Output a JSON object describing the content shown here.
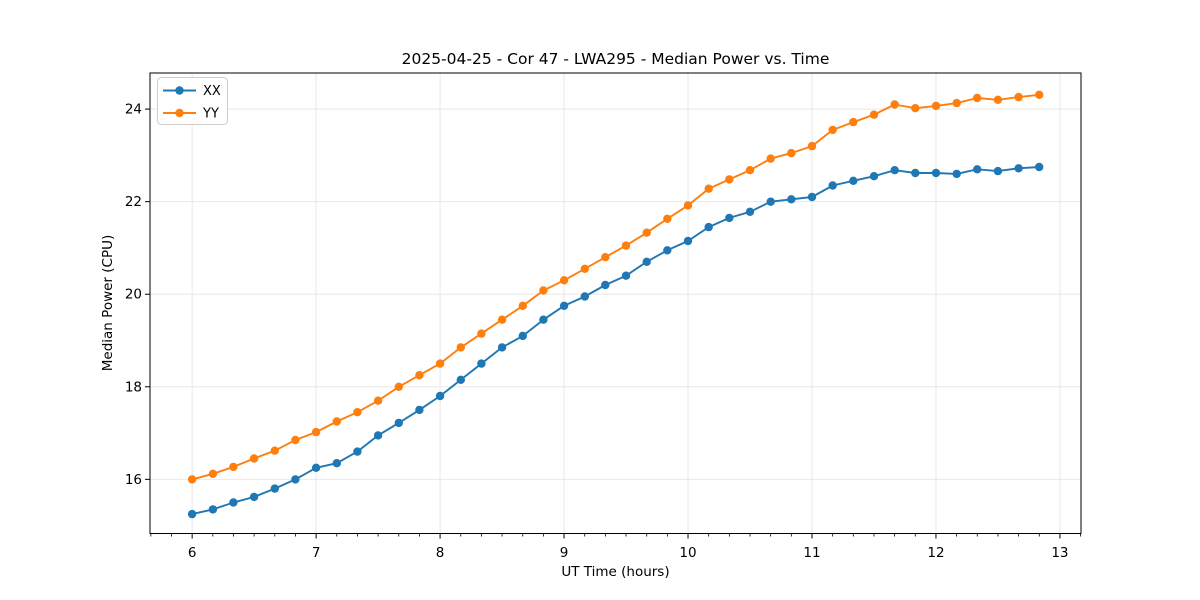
{
  "figure": {
    "background": "#ffffff",
    "frame_color": "#000000",
    "grid_color": "#e5e5e5",
    "tick_color": "#000000"
  },
  "chart_data": {
    "type": "line",
    "title": "2025-04-25 - Cor 47 - LWA295 - Median Power vs. Time",
    "xlabel": "UT Time (hours)",
    "ylabel": "Median Power (CPU)",
    "xlim": [
      5.66,
      13.17
    ],
    "ylim": [
      14.83,
      24.78
    ],
    "x_major_ticks": [
      6,
      7,
      8,
      9,
      10,
      11,
      12,
      13
    ],
    "x_minor_tick_interval": 0.16667,
    "y_major_ticks": [
      16,
      18,
      20,
      22,
      24
    ],
    "grid": true,
    "legend_position": "upper-left",
    "marker": "circle",
    "marker_radius": 4.2,
    "line_width": 1.9,
    "x": [
      6.0,
      6.167,
      6.333,
      6.5,
      6.667,
      6.833,
      7.0,
      7.167,
      7.333,
      7.5,
      7.667,
      7.833,
      8.0,
      8.167,
      8.333,
      8.5,
      8.667,
      8.833,
      9.0,
      9.167,
      9.333,
      9.5,
      9.667,
      9.833,
      10.0,
      10.167,
      10.333,
      10.5,
      10.667,
      10.833,
      11.0,
      11.167,
      11.333,
      11.5,
      11.667,
      11.833,
      12.0,
      12.167,
      12.333,
      12.5,
      12.667,
      12.833
    ],
    "series": [
      {
        "name": "XX",
        "color": "#1f77b4",
        "values": [
          15.25,
          15.35,
          15.5,
          15.62,
          15.8,
          16.0,
          16.25,
          16.35,
          16.6,
          16.95,
          17.22,
          17.5,
          17.8,
          18.15,
          18.5,
          18.85,
          19.1,
          19.45,
          19.75,
          19.95,
          20.2,
          20.4,
          20.7,
          20.95,
          21.15,
          21.45,
          21.65,
          21.78,
          22.0,
          22.05,
          22.1,
          22.35,
          22.45,
          22.55,
          22.68,
          22.62,
          22.62,
          22.6,
          22.7,
          22.66,
          22.72,
          22.75
        ]
      },
      {
        "name": "YY",
        "color": "#ff7f0e",
        "values": [
          16.0,
          16.12,
          16.27,
          16.45,
          16.62,
          16.85,
          17.02,
          17.25,
          17.45,
          17.7,
          18.0,
          18.25,
          18.5,
          18.85,
          19.15,
          19.45,
          19.75,
          20.08,
          20.3,
          20.55,
          20.8,
          21.05,
          21.33,
          21.63,
          21.92,
          22.28,
          22.48,
          22.68,
          22.93,
          23.05,
          23.2,
          23.55,
          23.72,
          23.88,
          24.1,
          24.02,
          24.07,
          24.13,
          24.24,
          24.2,
          24.26,
          24.31
        ]
      }
    ]
  },
  "legend": {
    "entries": [
      {
        "label": "XX"
      },
      {
        "label": "YY"
      }
    ]
  }
}
